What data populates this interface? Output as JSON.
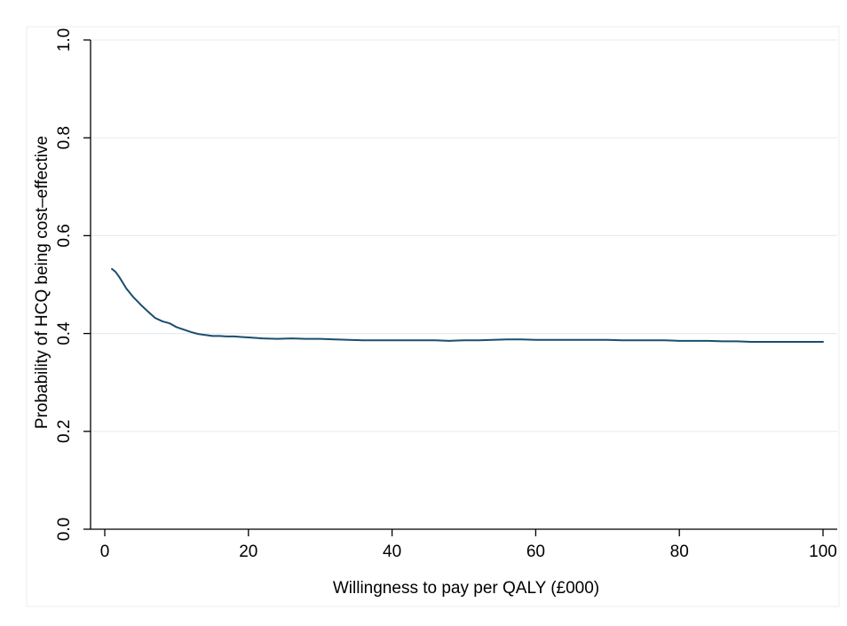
{
  "chart_data": {
    "type": "line",
    "title": "",
    "xlabel": "Willingness to pay per QALY (£000)",
    "ylabel": "Probability of HCQ being cost–effective",
    "xlim": [
      0,
      100
    ],
    "ylim": [
      0,
      1
    ],
    "xticks": [
      0,
      20,
      40,
      60,
      80,
      100
    ],
    "yticks": [
      0.0,
      0.2,
      0.4,
      0.6,
      0.8,
      1.0
    ],
    "xtick_labels": [
      "0",
      "20",
      "40",
      "60",
      "80",
      "100"
    ],
    "ytick_labels": [
      "0.0",
      "0.2",
      "0.4",
      "0.6",
      "0.8",
      "1.0"
    ],
    "grid": "horizontal",
    "legend": "none",
    "colors": {
      "line": "#1a4d6e",
      "grid": "#e6eef3",
      "background": "#ffffff",
      "outer_background": "#ffffff"
    },
    "series": [
      {
        "x": [
          1,
          1.5,
          2,
          3,
          4,
          5,
          6,
          7,
          8,
          9,
          10,
          11,
          12,
          13,
          14,
          15,
          16,
          17,
          18,
          19,
          20,
          22,
          24,
          26,
          28,
          30,
          32,
          34,
          36,
          38,
          40,
          42,
          44,
          46,
          48,
          50,
          52,
          54,
          56,
          58,
          60,
          62,
          64,
          66,
          68,
          70,
          72,
          74,
          76,
          78,
          80,
          82,
          84,
          86,
          88,
          90,
          92,
          94,
          96,
          98,
          100
        ],
        "values": [
          0.532,
          0.526,
          0.516,
          0.492,
          0.474,
          0.459,
          0.445,
          0.432,
          0.425,
          0.421,
          0.413,
          0.408,
          0.403,
          0.399,
          0.397,
          0.395,
          0.395,
          0.394,
          0.394,
          0.393,
          0.392,
          0.39,
          0.389,
          0.39,
          0.389,
          0.389,
          0.388,
          0.387,
          0.386,
          0.386,
          0.386,
          0.386,
          0.386,
          0.386,
          0.385,
          0.386,
          0.386,
          0.387,
          0.388,
          0.388,
          0.387,
          0.387,
          0.387,
          0.387,
          0.387,
          0.387,
          0.386,
          0.386,
          0.386,
          0.386,
          0.385,
          0.385,
          0.385,
          0.384,
          0.384,
          0.383,
          0.383,
          0.383,
          0.383,
          0.383,
          0.383
        ]
      }
    ]
  }
}
